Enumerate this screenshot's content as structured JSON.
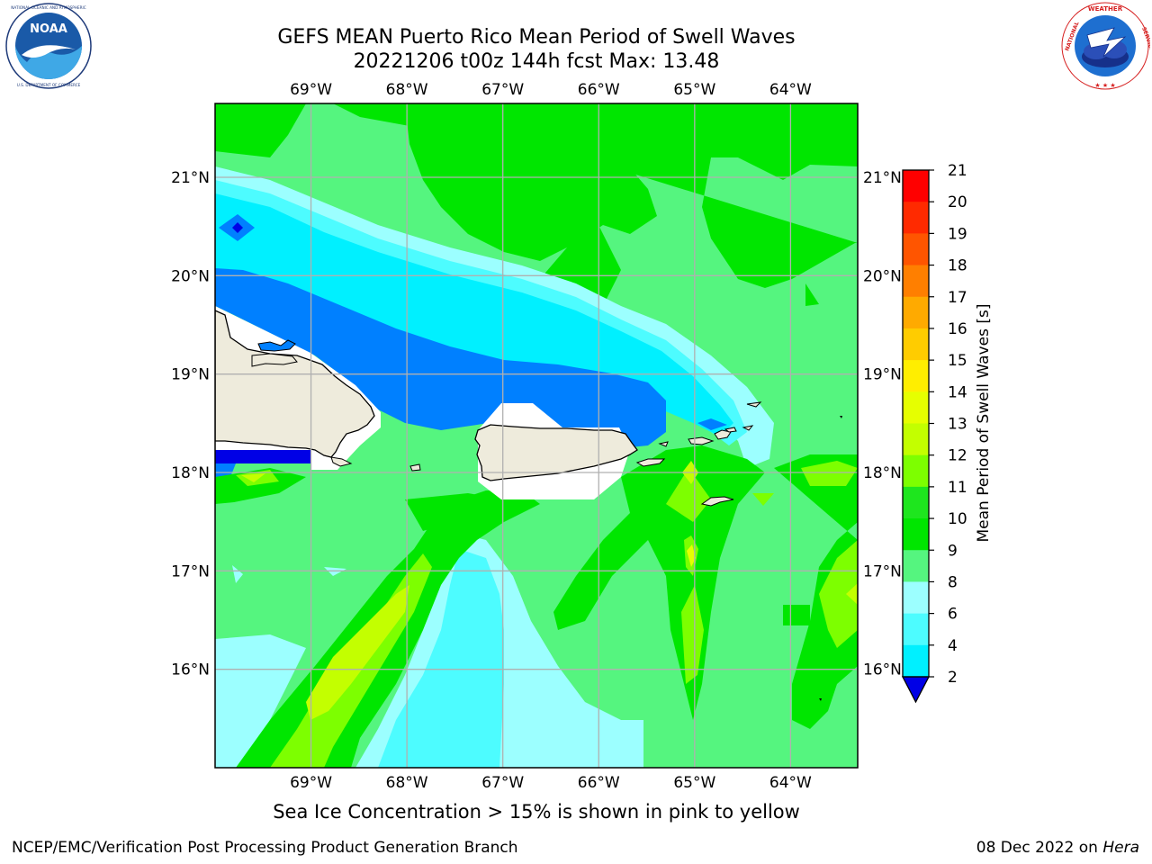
{
  "title": {
    "line1": "GEFS MEAN Puerto Rico Mean Period of Swell Waves",
    "line2": "20221206 t00z 144h fcst   Max: 13.48"
  },
  "logos": {
    "left": "NOAA",
    "left_ring": "NATIONAL OCEANIC AND ATMOSPHERIC ADMINISTRATION · U.S. DEPARTMENT OF COMMERCE",
    "right_ring": "NATIONAL WEATHER SERVICE"
  },
  "map": {
    "lon_ticks": [
      "69°W",
      "68°W",
      "67°W",
      "66°W",
      "65°W",
      "64°W"
    ],
    "lat_ticks": [
      "21°N",
      "20°N",
      "19°N",
      "18°N",
      "17°N",
      "16°N"
    ],
    "lon_range": [
      -70.0,
      -63.3
    ],
    "lat_range": [
      15.0,
      21.75
    ],
    "gridlines": true
  },
  "colorbar": {
    "label": "Mean Period of Swell Waves [s]",
    "ticks": [
      "21",
      "20",
      "19",
      "18",
      "17",
      "16",
      "15",
      "14",
      "13",
      "12",
      "11",
      "10",
      "9",
      "8",
      "6",
      "4",
      "2"
    ],
    "colors": [
      "#ff0000",
      "#ff2a00",
      "#ff5500",
      "#ff7f00",
      "#ffaa00",
      "#ffcc00",
      "#ffee00",
      "#e6ff00",
      "#c3ff00",
      "#7dff00",
      "#1ee61e",
      "#00e600",
      "#55f57f",
      "#9cffff",
      "#4dfcff",
      "#00f0ff",
      "#0080ff",
      "#0000e6"
    ]
  },
  "note": "Sea Ice Concentration > 15% is shown in pink to yellow",
  "credit": {
    "left": "NCEP/EMC/Verification Post Processing Product Generation Branch",
    "right_date": "08 Dec 2022 on ",
    "right_host": "Hera"
  }
}
